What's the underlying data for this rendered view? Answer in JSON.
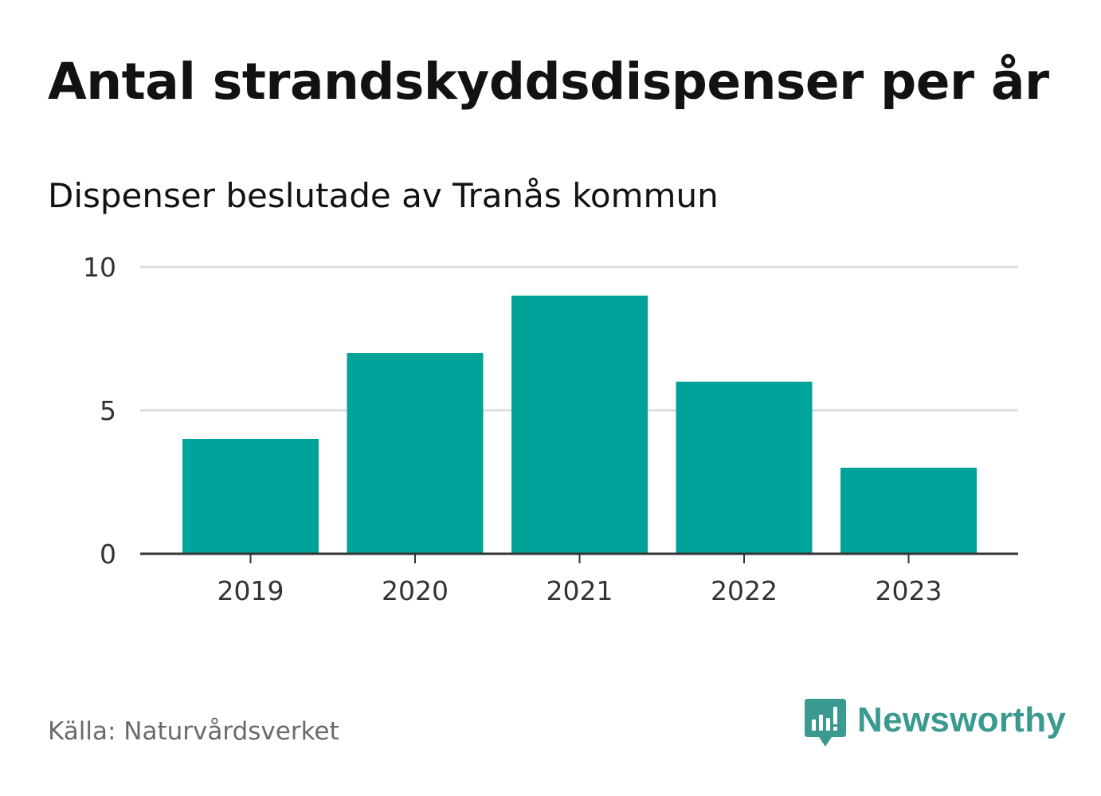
{
  "header": {
    "title": "Antal strandskyddsdispenser per år",
    "subtitle": "Dispenser beslutade av Tranås kommun"
  },
  "footer": {
    "source": "Källa: Naturvårdsverket",
    "brand": "Newsworthy",
    "brand_icon": "newsworthy-logo-icon"
  },
  "colors": {
    "bar": "#00a39a",
    "grid": "#dddddd",
    "axis": "#333333",
    "brand": "#3a9a8f"
  },
  "chart_data": {
    "type": "bar",
    "title": "Antal strandskyddsdispenser per år",
    "subtitle": "Dispenser beslutade av Tranås kommun",
    "xlabel": "",
    "ylabel": "",
    "categories": [
      "2019",
      "2020",
      "2021",
      "2022",
      "2023"
    ],
    "values": [
      4,
      7,
      9,
      6,
      3
    ],
    "ylim": [
      0,
      10
    ],
    "yticks": [
      0,
      5,
      10
    ],
    "grid": true,
    "legend": "none"
  }
}
